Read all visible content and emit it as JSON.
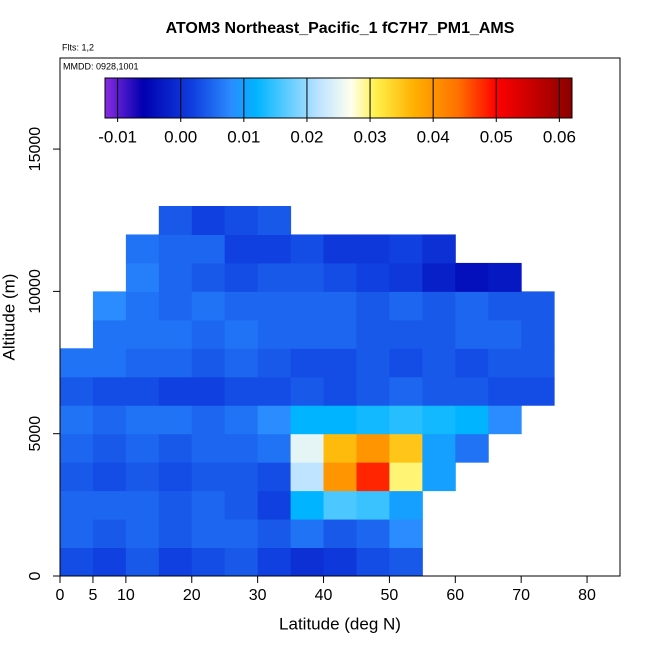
{
  "chart_data": {
    "type": "heatmap",
    "title": "ATOM3 Northeast_Pacific_1 fC7H7_PM1_AMS",
    "annotations": [
      "Flts: 1,2",
      "MMDD: 0928,1001"
    ],
    "xlabel": "Latitude (deg N)",
    "ylabel": "Altitude (m)",
    "xlim": [
      0,
      85
    ],
    "ylim": [
      0,
      18200
    ],
    "xticks": [
      0,
      5,
      10,
      20,
      30,
      40,
      50,
      60,
      70,
      80
    ],
    "yticks": [
      0,
      5000,
      10000,
      15000
    ],
    "x_bins": [
      0,
      5,
      10,
      15,
      20,
      25,
      30,
      35,
      40,
      45,
      50,
      55,
      60,
      65,
      70,
      75
    ],
    "y_bins": [
      0,
      1000,
      2000,
      3000,
      4000,
      5000,
      6000,
      7000,
      8000,
      9000,
      10000,
      11000,
      12000,
      13000
    ],
    "z": [
      [
        0.003,
        0.002,
        0.004,
        0.002,
        0.003,
        0.004,
        0.002,
        0.0,
        0.001,
        0.003,
        0.004,
        null,
        null,
        null,
        null
      ],
      [
        0.005,
        0.004,
        0.005,
        0.004,
        0.005,
        0.005,
        0.004,
        0.006,
        0.004,
        0.005,
        0.008,
        null,
        null,
        null,
        null
      ],
      [
        0.005,
        0.005,
        0.005,
        0.004,
        0.005,
        0.004,
        0.002,
        0.012,
        0.016,
        0.015,
        0.01,
        null,
        null,
        null,
        null
      ],
      [
        0.004,
        0.003,
        0.004,
        0.003,
        0.004,
        0.004,
        0.003,
        0.022,
        0.04,
        0.048,
        0.03,
        0.01,
        null,
        null,
        null
      ],
      [
        0.005,
        0.004,
        0.005,
        0.004,
        0.005,
        0.005,
        0.006,
        0.025,
        0.036,
        0.04,
        0.035,
        0.01,
        0.006,
        null,
        null
      ],
      [
        0.006,
        0.005,
        0.006,
        0.006,
        0.005,
        0.006,
        0.008,
        0.012,
        0.012,
        0.013,
        0.014,
        0.013,
        0.012,
        0.008,
        null
      ],
      [
        0.004,
        0.003,
        0.003,
        0.002,
        0.002,
        0.003,
        0.003,
        0.004,
        0.003,
        0.004,
        0.005,
        0.004,
        0.004,
        0.003,
        0.003
      ],
      [
        0.006,
        0.006,
        0.005,
        0.005,
        0.004,
        0.005,
        0.004,
        0.003,
        0.003,
        0.004,
        0.003,
        0.004,
        0.003,
        0.004,
        0.004
      ],
      [
        null,
        0.006,
        0.006,
        0.006,
        0.005,
        0.006,
        0.005,
        0.005,
        0.005,
        0.004,
        0.004,
        0.004,
        0.005,
        0.005,
        0.004
      ],
      [
        null,
        0.008,
        0.006,
        0.005,
        0.006,
        0.005,
        0.005,
        0.005,
        0.005,
        0.004,
        0.005,
        0.004,
        0.005,
        0.004,
        0.004
      ],
      [
        null,
        null,
        0.007,
        0.005,
        0.004,
        0.003,
        0.004,
        0.004,
        0.003,
        0.002,
        0.001,
        -0.002,
        -0.004,
        -0.003,
        null
      ],
      [
        null,
        null,
        0.006,
        0.005,
        0.005,
        0.002,
        0.002,
        0.003,
        0.001,
        0.001,
        0.002,
        0.0,
        null,
        null,
        null
      ],
      [
        null,
        null,
        null,
        0.004,
        0.002,
        0.003,
        0.004,
        null,
        null,
        null,
        null,
        null,
        null,
        null,
        null
      ]
    ],
    "clim": [
      -0.012,
      0.062
    ],
    "colorbar_ticks": [
      -0.01,
      {
        "value": 0.0,
        "label": "0.00"
      },
      0.01,
      0.02,
      0.03,
      0.04,
      0.05,
      0.06
    ],
    "colorscale": [
      [
        -0.012,
        "#8a2be2"
      ],
      [
        -0.006,
        "#0000b0"
      ],
      [
        0.002,
        "#1040e0"
      ],
      [
        0.008,
        "#2a8cff"
      ],
      [
        0.012,
        "#00b4ff"
      ],
      [
        0.022,
        "#bfe4ff"
      ],
      [
        0.027,
        "#ffffee"
      ],
      [
        0.031,
        "#fff04a"
      ],
      [
        0.037,
        "#ffb000"
      ],
      [
        0.044,
        "#ff7000"
      ],
      [
        0.05,
        "#ff0000"
      ],
      [
        0.062,
        "#8b0000"
      ]
    ]
  }
}
